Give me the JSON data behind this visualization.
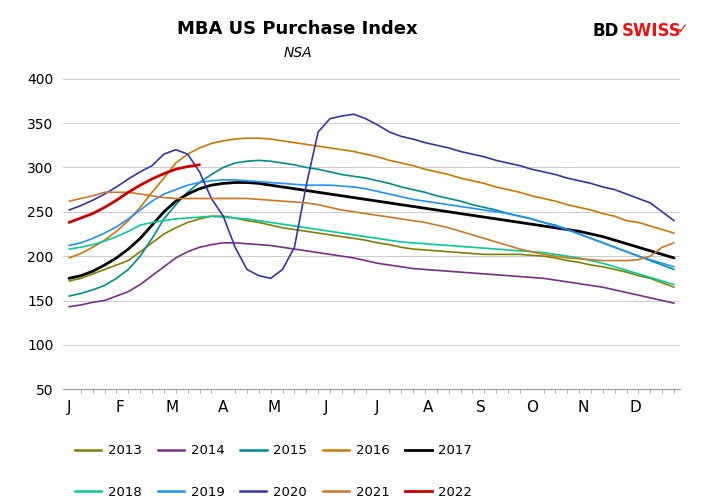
{
  "title": "MBA US Purchase Index",
  "subtitle": "NSA",
  "xlabel_months": [
    "J",
    "F",
    "M",
    "A",
    "M",
    "J",
    "J",
    "A",
    "S",
    "O",
    "N",
    "D"
  ],
  "ylim": [
    50,
    410
  ],
  "yticks": [
    50,
    100,
    150,
    200,
    250,
    300,
    350,
    400
  ],
  "background_color": "#FFFFFF",
  "series": {
    "2013": {
      "color": "#808000",
      "lw": 1.2,
      "data": [
        172,
        175,
        180,
        185,
        190,
        195,
        205,
        215,
        225,
        232,
        238,
        242,
        245,
        245,
        243,
        240,
        238,
        235,
        232,
        230,
        228,
        226,
        224,
        222,
        220,
        218,
        215,
        213,
        210,
        208,
        207,
        206,
        205,
        204,
        203,
        202,
        202,
        202,
        202,
        201,
        200,
        198,
        195,
        193,
        190,
        188,
        185,
        182,
        178,
        175,
        170,
        165
      ]
    },
    "2014": {
      "color": "#7B2D8B",
      "lw": 1.2,
      "data": [
        143,
        145,
        148,
        150,
        155,
        160,
        168,
        178,
        188,
        198,
        205,
        210,
        213,
        215,
        215,
        214,
        213,
        212,
        210,
        208,
        206,
        204,
        202,
        200,
        198,
        195,
        192,
        190,
        188,
        186,
        185,
        184,
        183,
        182,
        181,
        180,
        179,
        178,
        177,
        176,
        175,
        173,
        171,
        169,
        167,
        165,
        162,
        159,
        156,
        153,
        150,
        147
      ]
    },
    "2015": {
      "color": "#008B8B",
      "lw": 1.2,
      "data": [
        155,
        158,
        162,
        167,
        175,
        185,
        200,
        220,
        242,
        258,
        272,
        283,
        292,
        300,
        305,
        307,
        308,
        307,
        305,
        303,
        300,
        298,
        295,
        292,
        290,
        288,
        285,
        282,
        278,
        275,
        272,
        268,
        265,
        262,
        258,
        255,
        252,
        248,
        245,
        242,
        238,
        235,
        230,
        225,
        220,
        215,
        210,
        205,
        200,
        195,
        190,
        185
      ]
    },
    "2016": {
      "color": "#CC7700",
      "lw": 1.2,
      "data": [
        198,
        203,
        210,
        218,
        228,
        240,
        255,
        272,
        288,
        305,
        315,
        322,
        327,
        330,
        332,
        333,
        333,
        332,
        330,
        328,
        326,
        324,
        322,
        320,
        318,
        315,
        312,
        308,
        305,
        302,
        298,
        295,
        292,
        288,
        285,
        282,
        278,
        275,
        272,
        268,
        265,
        262,
        258,
        255,
        252,
        248,
        245,
        240,
        238,
        234,
        230,
        226
      ]
    },
    "2017": {
      "color": "#000000",
      "lw": 2.0,
      "data": [
        175,
        178,
        183,
        190,
        198,
        208,
        220,
        235,
        250,
        262,
        270,
        276,
        280,
        282,
        283,
        283,
        282,
        280,
        278,
        276,
        274,
        272,
        270,
        268,
        266,
        264,
        262,
        260,
        258,
        256,
        254,
        252,
        250,
        248,
        246,
        244,
        242,
        240,
        238,
        236,
        234,
        232,
        230,
        228,
        225,
        222,
        218,
        214,
        210,
        206,
        202,
        198
      ]
    },
    "2018": {
      "color": "#00CC99",
      "lw": 1.2,
      "data": [
        208,
        210,
        213,
        217,
        222,
        228,
        235,
        238,
        240,
        242,
        243,
        244,
        245,
        244,
        243,
        242,
        240,
        238,
        236,
        234,
        232,
        230,
        228,
        226,
        224,
        222,
        220,
        218,
        216,
        215,
        214,
        213,
        212,
        211,
        210,
        209,
        208,
        207,
        206,
        205,
        204,
        202,
        200,
        198,
        195,
        192,
        188,
        184,
        180,
        176,
        172,
        168
      ]
    },
    "2019": {
      "color": "#1E90FF",
      "lw": 1.2,
      "data": [
        212,
        215,
        220,
        226,
        233,
        242,
        252,
        262,
        270,
        275,
        280,
        283,
        285,
        286,
        286,
        285,
        284,
        283,
        282,
        281,
        280,
        280,
        280,
        279,
        278,
        276,
        273,
        270,
        267,
        264,
        262,
        260,
        258,
        256,
        254,
        252,
        250,
        248,
        245,
        242,
        238,
        234,
        230,
        225,
        220,
        215,
        210,
        205,
        200,
        196,
        192,
        188
      ]
    },
    "2020": {
      "color": "#3333AA",
      "lw": 1.2,
      "data": [
        252,
        257,
        263,
        270,
        278,
        287,
        295,
        302,
        315,
        320,
        315,
        295,
        265,
        245,
        210,
        185,
        178,
        175,
        185,
        210,
        280,
        340,
        355,
        358,
        360,
        355,
        348,
        340,
        335,
        332,
        328,
        325,
        322,
        318,
        315,
        312,
        308,
        305,
        302,
        298,
        295,
        292,
        288,
        285,
        282,
        278,
        275,
        270,
        265,
        260,
        250,
        240
      ]
    },
    "2021": {
      "color": "#CC7722",
      "lw": 1.2,
      "data": [
        262,
        265,
        268,
        272,
        272,
        272,
        270,
        268,
        266,
        265,
        265,
        265,
        265,
        265,
        265,
        265,
        264,
        263,
        262,
        261,
        260,
        258,
        255,
        252,
        250,
        248,
        246,
        244,
        242,
        240,
        238,
        235,
        232,
        228,
        224,
        220,
        216,
        212,
        208,
        205,
        202,
        200,
        198,
        197,
        196,
        195,
        195,
        195,
        196,
        200,
        210,
        215
      ]
    },
    "2022": {
      "color": "#CC0000",
      "lw": 2.0,
      "data": [
        238,
        243,
        248,
        255,
        263,
        272,
        280,
        287,
        293,
        298,
        301,
        303,
        null,
        null,
        null,
        null,
        null,
        null,
        null,
        null,
        null,
        null,
        null,
        null,
        null,
        null,
        null,
        null,
        null,
        null,
        null,
        null,
        null,
        null,
        null,
        null,
        null,
        null,
        null,
        null,
        null,
        null,
        null,
        null,
        null,
        null,
        null,
        null,
        null,
        null,
        null,
        null
      ]
    }
  },
  "legend_order": [
    "2013",
    "2014",
    "2015",
    "2016",
    "2017",
    "2018",
    "2019",
    "2020",
    "2021",
    "2022"
  ],
  "month_tick_positions": [
    0,
    4.3,
    8.7,
    13,
    17.3,
    21.7,
    26,
    30.3,
    34.7,
    39,
    43.3,
    47.7
  ]
}
